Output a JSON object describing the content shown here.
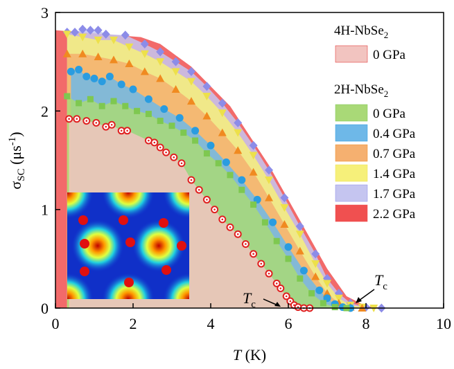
{
  "chart_data": {
    "type": "area",
    "x_label": {
      "main": "T",
      "unit": " (K)"
    },
    "y_label": {
      "main": "σ",
      "sub": "SC",
      "mid": " (μs",
      "sup": "-1",
      "end": ")"
    },
    "xlim": [
      0,
      10
    ],
    "ylim": [
      0,
      3
    ],
    "xticks": [
      0,
      2,
      4,
      6,
      8,
      10
    ],
    "yticks": [
      0,
      1,
      2,
      3
    ],
    "annotations": [
      {
        "main": "T",
        "sub": "c"
      },
      {
        "main": "T",
        "sub": "c"
      }
    ],
    "groups": [
      {
        "title": "4H-NbSe",
        "title_sub": "2",
        "series": [
          {
            "name": "0 GPa",
            "color": "#f2c4c0",
            "marker_color": "#e02020",
            "marker": "circle-dot",
            "x": [
              0.35,
              0.55,
              0.8,
              1.05,
              1.3,
              1.45,
              1.7,
              1.85,
              2.4,
              2.55,
              2.7,
              2.85,
              3.05,
              3.25,
              3.5,
              3.7,
              3.9,
              4.1,
              4.3,
              4.5,
              4.7,
              4.9,
              5.1,
              5.3,
              5.5,
              5.7,
              5.8,
              5.95,
              6.05,
              6.15,
              6.25,
              6.4,
              6.55
            ],
            "values": [
              1.92,
              1.92,
              1.9,
              1.88,
              1.84,
              1.86,
              1.8,
              1.8,
              1.7,
              1.68,
              1.63,
              1.58,
              1.53,
              1.47,
              1.3,
              1.2,
              1.1,
              1.0,
              0.9,
              0.82,
              0.75,
              0.65,
              0.55,
              0.45,
              0.35,
              0.25,
              0.2,
              0.12,
              0.07,
              0.03,
              0.01,
              0,
              0
            ]
          }
        ]
      },
      {
        "title": "2H-NbSe",
        "title_sub": "2",
        "series": [
          {
            "name": "0 GPa",
            "color": "#a9d977",
            "marker_color": "#7ec850",
            "marker": "square",
            "x": [
              0.3,
              0.6,
              0.9,
              1.2,
              1.5,
              1.8,
              2.1,
              2.4,
              2.7,
              3.0,
              3.3,
              3.6,
              3.9,
              4.2,
              4.5,
              4.8,
              5.1,
              5.4,
              5.7,
              6.0,
              6.3,
              6.6,
              6.9,
              7.2,
              7.5
            ],
            "values": [
              2.15,
              2.08,
              2.12,
              2.05,
              2.1,
              2.05,
              2.0,
              1.97,
              1.9,
              1.85,
              1.78,
              1.7,
              1.57,
              1.47,
              1.35,
              1.2,
              1.05,
              0.87,
              0.68,
              0.5,
              0.3,
              0.15,
              0.05,
              0.01,
              0
            ]
          },
          {
            "name": "0.4 GPa",
            "color": "#6eb8e8",
            "marker_color": "#2a9ce0",
            "marker": "circle",
            "x": [
              0.4,
              0.6,
              0.8,
              1.0,
              1.2,
              1.4,
              1.7,
              2.0,
              2.4,
              2.8,
              3.2,
              3.6,
              4.0,
              4.4,
              4.8,
              5.2,
              5.6,
              6.0,
              6.4,
              6.8,
              7.0,
              7.2,
              7.4,
              7.6
            ],
            "values": [
              2.4,
              2.42,
              2.35,
              2.33,
              2.3,
              2.35,
              2.27,
              2.22,
              2.12,
              2.02,
              1.93,
              1.8,
              1.65,
              1.48,
              1.3,
              1.1,
              0.87,
              0.62,
              0.38,
              0.18,
              0.1,
              0.04,
              0.01,
              0
            ]
          },
          {
            "name": "0.7 GPa",
            "color": "#f5b070",
            "marker_color": "#f08a20",
            "marker": "triangle",
            "x": [
              0.3,
              0.7,
              1.1,
              1.5,
              1.9,
              2.3,
              2.7,
              3.1,
              3.5,
              3.9,
              4.3,
              4.7,
              5.1,
              5.5,
              5.9,
              6.3,
              6.7,
              7.0,
              7.3,
              7.6,
              7.9
            ],
            "values": [
              2.58,
              2.58,
              2.55,
              2.52,
              2.48,
              2.4,
              2.33,
              2.22,
              2.1,
              1.95,
              1.78,
              1.6,
              1.38,
              1.12,
              0.85,
              0.58,
              0.32,
              0.15,
              0.05,
              0.01,
              0
            ]
          },
          {
            "name": "1.4 GPa",
            "color": "#f6f07a",
            "marker_color": "#ede04a",
            "marker": "triangle-down",
            "x": [
              0.3,
              0.7,
              1.1,
              1.5,
              1.9,
              2.3,
              2.7,
              3.1,
              3.5,
              3.9,
              4.3,
              4.7,
              5.1,
              5.5,
              5.9,
              6.3,
              6.7,
              7.0,
              7.3,
              7.6,
              7.9,
              8.2
            ],
            "values": [
              2.78,
              2.75,
              2.72,
              2.72,
              2.65,
              2.58,
              2.5,
              2.4,
              2.3,
              2.15,
              1.98,
              1.78,
              1.55,
              1.3,
              1.02,
              0.75,
              0.45,
              0.25,
              0.1,
              0.03,
              0.01,
              0
            ]
          },
          {
            "name": "1.7 GPa",
            "color": "#c5c5f0",
            "marker_color": "#8c8ce8",
            "marker": "diamond",
            "x": [
              0.3,
              0.5,
              0.7,
              0.9,
              1.1,
              1.3,
              1.8,
              2.3,
              2.7,
              3.1,
              3.5,
              3.9,
              4.3,
              4.7,
              5.1,
              5.5,
              5.9,
              6.3,
              6.7,
              7.0,
              7.3,
              7.6,
              8.0,
              8.4
            ],
            "values": [
              2.8,
              2.8,
              2.83,
              2.82,
              2.82,
              2.78,
              2.77,
              2.68,
              2.6,
              2.5,
              2.4,
              2.25,
              2.08,
              1.88,
              1.65,
              1.4,
              1.12,
              0.83,
              0.55,
              0.3,
              0.15,
              0.05,
              0.01,
              0
            ]
          },
          {
            "name": "2.2 GPa",
            "color": "#f05050",
            "marker": "none",
            "x": [
              0,
              2.2,
              2.7,
              3.5,
              4.5,
              5.5,
              6.5,
              7.0,
              7.5,
              8.0,
              8.5
            ],
            "values": [
              2.82,
              2.75,
              2.68,
              2.45,
              2.05,
              1.45,
              0.75,
              0.4,
              0.12,
              0.02,
              0
            ]
          }
        ]
      }
    ]
  }
}
